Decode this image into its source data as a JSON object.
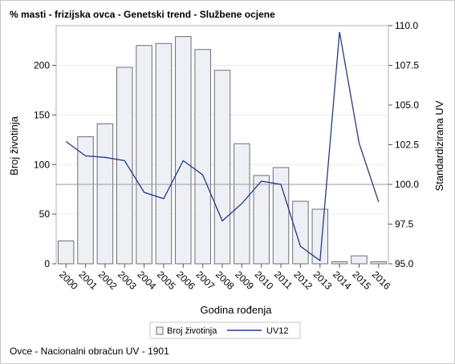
{
  "chart_data": {
    "type": "bar",
    "title": "% masti - frizijska ovca - Genetski trend - Službene ocjene",
    "xlabel": "Godina rođenja",
    "ylabel": "Broj životinja",
    "y2label": "Standardizirana UV",
    "categories": [
      "2000",
      "2001",
      "2002",
      "2003",
      "2004",
      "2005",
      "2006",
      "2007",
      "2008",
      "2009",
      "2010",
      "2011",
      "2012",
      "2013",
      "2014",
      "2015",
      "2016"
    ],
    "ylim": [
      0,
      240
    ],
    "y2lim": [
      95.0,
      110.0
    ],
    "yticks": [
      "0",
      "50",
      "100",
      "150",
      "200"
    ],
    "y2ticks": [
      "95.0",
      "97.5",
      "100.0",
      "102.5",
      "105.0",
      "107.5",
      "110.0"
    ],
    "series": [
      {
        "name": "Broj životinja",
        "type": "bar",
        "axis": "left",
        "color": "#eef0f6",
        "values": [
          23,
          128,
          141,
          198,
          220,
          222,
          229,
          216,
          195,
          121,
          89,
          97,
          63,
          55,
          2,
          8,
          2
        ]
      },
      {
        "name": "UV12",
        "type": "line",
        "axis": "right",
        "color": "#1f3a93",
        "values": [
          102.7,
          101.8,
          101.7,
          101.5,
          99.5,
          99.1,
          101.5,
          100.6,
          97.7,
          98.8,
          100.2,
          100.0,
          96.1,
          95.2,
          109.6,
          102.6,
          98.9
        ]
      }
    ],
    "reference_line": {
      "axis": "right",
      "value": 100.0
    },
    "legend": "bottom",
    "grid": "horizontal"
  },
  "footnote": "Ovce - Nacionalni obračun UV - 1901"
}
